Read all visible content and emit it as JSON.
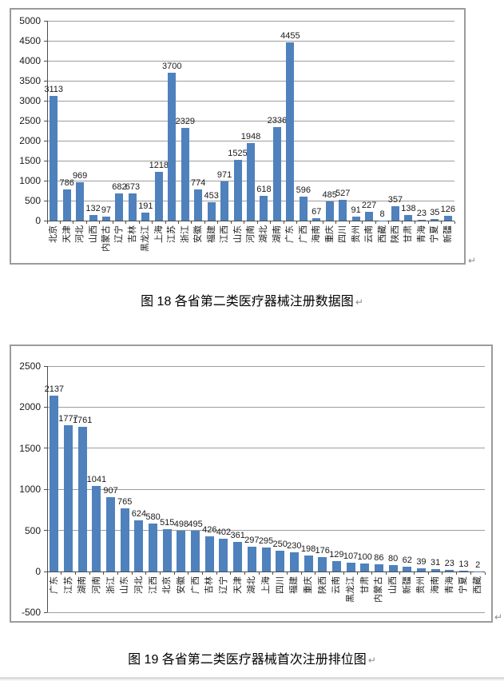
{
  "page": {
    "background": "#ffffff",
    "paragraph_mark": "↵",
    "page_break_color": "#dcdcdf"
  },
  "chart_data": [
    {
      "type": "bar",
      "name": "figure-18",
      "caption": "图 18 各省第二类医疗器械注册数据图",
      "title": "",
      "xlabel": "",
      "ylabel": "",
      "legend": "none",
      "grid": true,
      "data_labels": true,
      "ylim": [
        0,
        5000
      ],
      "yticks": [
        0,
        500,
        1000,
        1500,
        2000,
        2500,
        3000,
        3500,
        4000,
        4500,
        5000
      ],
      "categories": [
        "北京",
        "天津",
        "河北",
        "山西",
        "内蒙古",
        "辽宁",
        "吉林",
        "黑龙江",
        "上海",
        "江苏",
        "浙江",
        "安徽",
        "福建",
        "江西",
        "山东",
        "河南",
        "湖北",
        "湖南",
        "广东",
        "广西",
        "海南",
        "重庆",
        "四川",
        "贵州",
        "云南",
        "西藏",
        "陕西",
        "甘肃",
        "青海",
        "宁夏",
        "新疆"
      ],
      "values": [
        3113,
        786,
        969,
        132,
        97,
        682,
        673,
        191,
        1218,
        3700,
        2329,
        774,
        453,
        971,
        1525,
        1948,
        618,
        2336,
        4455,
        596,
        67,
        485,
        527,
        91,
        227,
        8,
        357,
        138,
        23,
        35,
        126
      ],
      "bar_color": "#4f81bd",
      "grid_color": "#9d9d9d",
      "axis_color": "#4d4d4d",
      "border_color": "#9b9b9b",
      "label_color": "#1a1a1a"
    },
    {
      "type": "bar",
      "name": "figure-19",
      "caption": "图 19 各省第二类医疗器械首次注册排位图",
      "title": "",
      "xlabel": "",
      "ylabel": "",
      "legend": "none",
      "grid": true,
      "data_labels": true,
      "ylim": [
        -500,
        2500
      ],
      "yticks": [
        -500,
        0,
        500,
        1000,
        1500,
        2000,
        2500
      ],
      "categories": [
        "广东",
        "江苏",
        "湖南",
        "河南",
        "浙江",
        "山东",
        "河北",
        "江西",
        "北京",
        "安徽",
        "广西",
        "吉林",
        "辽宁",
        "天津",
        "湖北",
        "上海",
        "四川",
        "福建",
        "重庆",
        "陕西",
        "云南",
        "黑龙江",
        "甘肃",
        "内蒙古",
        "山西",
        "新疆",
        "贵州",
        "海南",
        "青海",
        "宁夏",
        "西藏"
      ],
      "values": [
        2137,
        1777,
        1761,
        1041,
        907,
        765,
        624,
        580,
        515,
        498,
        495,
        426,
        402,
        361,
        297,
        295,
        250,
        230,
        198,
        176,
        129,
        107,
        100,
        86,
        80,
        62,
        39,
        31,
        23,
        13,
        2
      ],
      "bar_color": "#4f81bd",
      "grid_color": "#9d9d9d",
      "axis_color": "#4d4d4d",
      "border_color": "#9b9b9b",
      "label_color": "#1a1a1a"
    }
  ]
}
